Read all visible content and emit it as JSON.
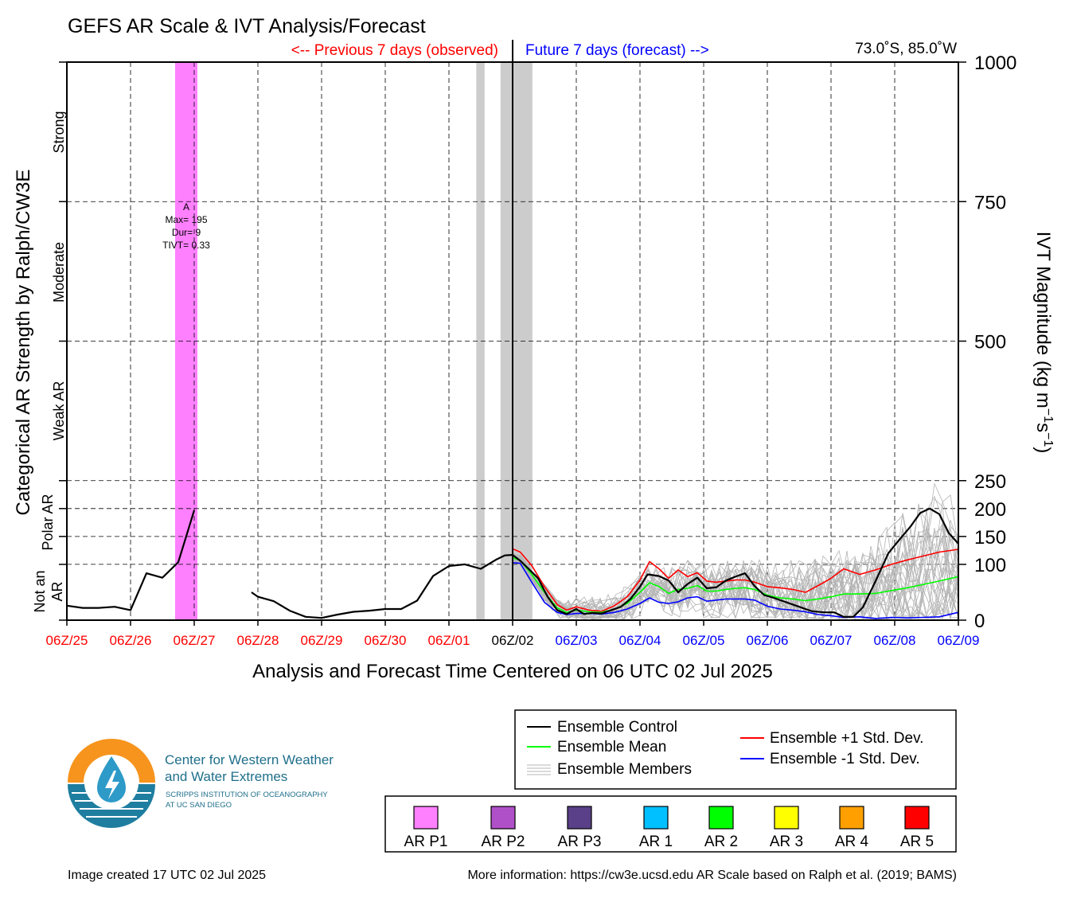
{
  "title": "GEFS AR Scale & IVT Analysis/Forecast",
  "header": {
    "previous_label": "<-- Previous 7 days (observed)",
    "future_label": "Future 7 days (forecast) -->",
    "location": "73.0˚S, 85.0˚W",
    "previous_color": "#ff0000",
    "future_color": "#0000ff"
  },
  "left_axis": {
    "label": "Categorical AR Strength by Ralph/CW3E",
    "categories": [
      "Strong",
      "Moderate",
      "Weak AR",
      "Polar AR",
      "Not an AR"
    ]
  },
  "right_axis": {
    "label_prefix": "IVT Magnitude (kg m",
    "label_exp1": "−1",
    "label_mid": "s",
    "label_exp2": "−1",
    "label_suffix": ")"
  },
  "x_axis": {
    "label": "Analysis and Forecast Time Centered on 06 UTC 02 Jul 2025"
  },
  "annotation": {
    "letter": "A",
    "max": "Max= 195",
    "dur": "Dur= 9",
    "tivt": "TIVT= 0.33"
  },
  "legend_lines": {
    "control": "Ensemble Control",
    "mean": "Ensemble Mean",
    "members": "Ensemble Members",
    "plus": "Ensemble +1 Std. Dev.",
    "minus": "Ensemble -1 Std. Dev."
  },
  "legend_ar": {
    "items": [
      {
        "label": "AR P1",
        "color": "#ff80ff"
      },
      {
        "label": "AR P2",
        "color": "#b050c8"
      },
      {
        "label": "AR P3",
        "color": "#5a4088"
      },
      {
        "label": "AR 1",
        "color": "#00c0ff"
      },
      {
        "label": "AR 2",
        "color": "#00ff00"
      },
      {
        "label": "AR 3",
        "color": "#ffff00"
      },
      {
        "label": "AR 4",
        "color": "#ffa000"
      },
      {
        "label": "AR 5",
        "color": "#ff0000"
      }
    ]
  },
  "logo": {
    "line1": "Center for Western Weather",
    "line2": "and Water Extremes",
    "line3": "SCRIPPS INSTITUTION OF OCEANOGRAPHY",
    "line4": "AT UC SAN DIEGO"
  },
  "footer": {
    "created": "Image created 17 UTC 02 Jul 2025",
    "info": "More information: https://cw3e.ucsd.edu AR Scale based on Ralph et al. (2019; BAMS)"
  },
  "chart_data": {
    "type": "line",
    "x_unit": "days relative to 06 UTC 02 Jul 2025",
    "xlim": [
      -7,
      7
    ],
    "ylim": [
      0,
      1000
    ],
    "y_ticks": [
      0,
      100,
      150,
      200,
      250,
      500,
      750,
      1000
    ],
    "grid": true,
    "x_tick_labels": [
      {
        "x": -7,
        "label": "06Z/25",
        "color": "#ff0000"
      },
      {
        "x": -6,
        "label": "06Z/26",
        "color": "#ff0000"
      },
      {
        "x": -5,
        "label": "06Z/27",
        "color": "#ff0000"
      },
      {
        "x": -4,
        "label": "06Z/28",
        "color": "#ff0000"
      },
      {
        "x": -3,
        "label": "06Z/29",
        "color": "#ff0000"
      },
      {
        "x": -2,
        "label": "06Z/30",
        "color": "#ff0000"
      },
      {
        "x": -1,
        "label": "06Z/01",
        "color": "#ff0000"
      },
      {
        "x": 0,
        "label": "06Z/02",
        "color": "#000000"
      },
      {
        "x": 1,
        "label": "06Z/03",
        "color": "#0000ff"
      },
      {
        "x": 2,
        "label": "06Z/04",
        "color": "#0000ff"
      },
      {
        "x": 3,
        "label": "06Z/05",
        "color": "#0000ff"
      },
      {
        "x": 4,
        "label": "06Z/06",
        "color": "#0000ff"
      },
      {
        "x": 5,
        "label": "06Z/07",
        "color": "#0000ff"
      },
      {
        "x": 6,
        "label": "06Z/08",
        "color": "#0000ff"
      },
      {
        "x": 7,
        "label": "06Z/09",
        "color": "#0000ff"
      }
    ],
    "shaded_periods": [
      {
        "x0": -5.3,
        "x1": -4.95,
        "color": "#ff80ff",
        "label": "AR P1"
      },
      {
        "x0": -0.57,
        "x1": -0.44,
        "color": "#cccccc",
        "label": "missing"
      },
      {
        "x0": -0.19,
        "x1": 0.31,
        "color": "#cccccc",
        "label": "missing"
      }
    ],
    "series": [
      {
        "name": "Ensemble Control",
        "color": "#000000",
        "segments": [
          [
            [
              -7,
              26
            ],
            [
              -6.75,
              22
            ],
            [
              -6.5,
              22
            ],
            [
              -6.25,
              24
            ],
            [
              -6,
              18
            ],
            [
              -5.75,
              84
            ],
            [
              -5.5,
              76
            ],
            [
              -5.25,
              104
            ],
            [
              -5,
              197
            ]
          ],
          [
            [
              -4.1,
              50
            ],
            [
              -4,
              42
            ],
            [
              -3.75,
              34
            ],
            [
              -3.5,
              17
            ],
            [
              -3.25,
              6
            ],
            [
              -3,
              4
            ],
            [
              -2.75,
              10
            ],
            [
              -2.5,
              15
            ],
            [
              -2.25,
              17
            ],
            [
              -2,
              20
            ],
            [
              -1.75,
              20
            ],
            [
              -1.5,
              35
            ],
            [
              -1.25,
              79
            ],
            [
              -1,
              97
            ],
            [
              -0.75,
              100
            ],
            [
              -0.5,
              92
            ],
            [
              -0.25,
              109
            ],
            [
              -0.125,
              116
            ],
            [
              0,
              117
            ],
            [
              0.125,
              106
            ],
            [
              0.25,
              92
            ],
            [
              0.4,
              75
            ],
            [
              0.55,
              42
            ],
            [
              0.7,
              18
            ],
            [
              0.85,
              11
            ],
            [
              1,
              20
            ],
            [
              1.12,
              11
            ],
            [
              1.25,
              13
            ],
            [
              1.4,
              12
            ],
            [
              1.55,
              18
            ],
            [
              1.7,
              24
            ],
            [
              1.85,
              38
            ],
            [
              2,
              60
            ],
            [
              2.12,
              82
            ],
            [
              2.3,
              79
            ],
            [
              2.45,
              71
            ],
            [
              2.6,
              50
            ],
            [
              2.75,
              65
            ],
            [
              2.9,
              76
            ],
            [
              3.05,
              57
            ],
            [
              3.2,
              59
            ],
            [
              3.35,
              71
            ],
            [
              3.5,
              78
            ],
            [
              3.65,
              84
            ],
            [
              3.8,
              61
            ],
            [
              3.95,
              45
            ],
            [
              4.1,
              40
            ],
            [
              4.3,
              32
            ],
            [
              4.5,
              24
            ],
            [
              4.7,
              16
            ],
            [
              4.9,
              14
            ],
            [
              5.05,
              14
            ],
            [
              5.2,
              6
            ],
            [
              5.35,
              6
            ],
            [
              5.5,
              23
            ],
            [
              5.7,
              70
            ],
            [
              5.9,
              120
            ],
            [
              6.05,
              141
            ],
            [
              6.25,
              168
            ],
            [
              6.4,
              192
            ],
            [
              6.55,
              200
            ],
            [
              6.7,
              190
            ],
            [
              6.85,
              156
            ],
            [
              7,
              137
            ]
          ]
        ]
      },
      {
        "name": "Ensemble Mean",
        "color": "#00ff00",
        "points": [
          [
            0,
            112
          ],
          [
            0.12,
            107
          ],
          [
            0.3,
            82
          ],
          [
            0.5,
            50
          ],
          [
            0.7,
            22
          ],
          [
            0.85,
            14
          ],
          [
            1,
            18
          ],
          [
            1.2,
            15
          ],
          [
            1.4,
            14
          ],
          [
            1.6,
            20
          ],
          [
            1.8,
            30
          ],
          [
            2,
            50
          ],
          [
            2.15,
            67
          ],
          [
            2.3,
            60
          ],
          [
            2.45,
            48
          ],
          [
            2.6,
            55
          ],
          [
            2.75,
            57
          ],
          [
            2.9,
            62
          ],
          [
            3.05,
            52
          ],
          [
            3.2,
            52
          ],
          [
            3.35,
            55
          ],
          [
            3.5,
            57
          ],
          [
            3.65,
            58
          ],
          [
            3.8,
            55
          ],
          [
            4,
            45
          ],
          [
            4.2,
            40
          ],
          [
            4.4,
            38
          ],
          [
            4.6,
            35
          ],
          [
            4.8,
            38
          ],
          [
            5,
            42
          ],
          [
            5.2,
            47
          ],
          [
            5.45,
            47
          ],
          [
            5.7,
            48
          ],
          [
            5.95,
            53
          ],
          [
            6.2,
            58
          ],
          [
            6.45,
            64
          ],
          [
            6.7,
            70
          ],
          [
            7,
            78
          ]
        ]
      },
      {
        "name": "Ensemble +1 Std. Dev.",
        "color": "#ff0000",
        "points": [
          [
            0,
            128
          ],
          [
            0.12,
            122
          ],
          [
            0.3,
            98
          ],
          [
            0.5,
            60
          ],
          [
            0.7,
            28
          ],
          [
            0.85,
            18
          ],
          [
            1,
            24
          ],
          [
            1.2,
            18
          ],
          [
            1.4,
            16
          ],
          [
            1.6,
            26
          ],
          [
            1.8,
            42
          ],
          [
            2,
            72
          ],
          [
            2.15,
            105
          ],
          [
            2.3,
            92
          ],
          [
            2.45,
            75
          ],
          [
            2.6,
            90
          ],
          [
            2.75,
            78
          ],
          [
            2.9,
            85
          ],
          [
            3.05,
            70
          ],
          [
            3.2,
            68
          ],
          [
            3.35,
            70
          ],
          [
            3.5,
            72
          ],
          [
            3.65,
            72
          ],
          [
            3.8,
            68
          ],
          [
            4,
            60
          ],
          [
            4.2,
            58
          ],
          [
            4.4,
            55
          ],
          [
            4.6,
            50
          ],
          [
            4.8,
            62
          ],
          [
            5,
            75
          ],
          [
            5.2,
            92
          ],
          [
            5.45,
            82
          ],
          [
            5.7,
            90
          ],
          [
            5.95,
            100
          ],
          [
            6.2,
            108
          ],
          [
            6.45,
            115
          ],
          [
            6.7,
            122
          ],
          [
            7,
            127
          ]
        ]
      },
      {
        "name": "Ensemble -1 Std. Dev.",
        "color": "#0000ff",
        "points": [
          [
            0,
            103
          ],
          [
            0.12,
            102
          ],
          [
            0.3,
            68
          ],
          [
            0.5,
            32
          ],
          [
            0.7,
            14
          ],
          [
            0.85,
            10
          ],
          [
            1,
            12
          ],
          [
            1.2,
            12
          ],
          [
            1.4,
            11
          ],
          [
            1.6,
            14
          ],
          [
            1.8,
            20
          ],
          [
            2,
            30
          ],
          [
            2.15,
            40
          ],
          [
            2.3,
            32
          ],
          [
            2.45,
            30
          ],
          [
            2.6,
            33
          ],
          [
            2.75,
            40
          ],
          [
            2.9,
            42
          ],
          [
            3.05,
            34
          ],
          [
            3.2,
            36
          ],
          [
            3.35,
            38
          ],
          [
            3.5,
            38
          ],
          [
            3.65,
            38
          ],
          [
            3.8,
            36
          ],
          [
            4,
            25
          ],
          [
            4.2,
            20
          ],
          [
            4.4,
            18
          ],
          [
            4.6,
            15
          ],
          [
            4.8,
            10
          ],
          [
            5,
            8
          ],
          [
            5.2,
            5
          ],
          [
            5.45,
            6
          ],
          [
            5.7,
            3
          ],
          [
            5.95,
            5
          ],
          [
            6.2,
            4
          ],
          [
            6.45,
            5
          ],
          [
            6.7,
            6
          ],
          [
            7,
            14
          ]
        ]
      }
    ],
    "ensemble_members": {
      "name": "Ensemble Members",
      "color": "#b4b4b4",
      "count": 30
    }
  }
}
